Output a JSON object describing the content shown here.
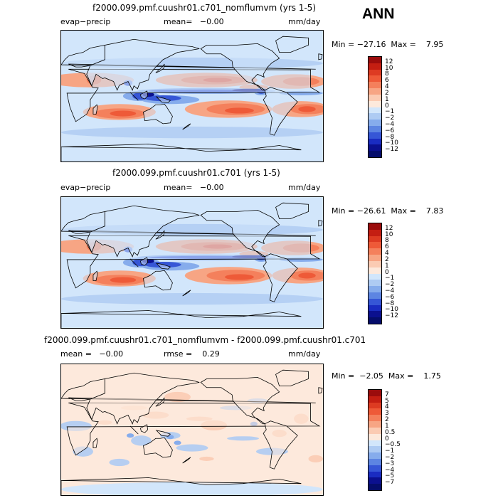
{
  "season": "ANN",
  "chart_data": [
    {
      "type": "heatmap",
      "title": "f2000.099.pmf.cuushr01.c701_nomflumvm (yrs 1-5)",
      "variable": "evap−precip",
      "mean_text": "mean=   −0.00",
      "units": "mm/day",
      "min_max_text": "Min = −27.16  Max =    7.95",
      "min": -27.16,
      "max": 7.95,
      "colorbar": {
        "levels": [
          "12",
          "10",
          "8",
          "6",
          "4",
          "2",
          "1",
          "0",
          "−1",
          "−2",
          "−4",
          "−6",
          "−8",
          "−10",
          "−12"
        ],
        "colors": [
          "#9b0c0c",
          "#c41e12",
          "#dd3b22",
          "#ee5a38",
          "#f4805c",
          "#f7a584",
          "#fbcbb3",
          "#fde9dc",
          "#d2e6fb",
          "#aecbf3",
          "#86acec",
          "#5d85e2",
          "#3656d6",
          "#1a2cc1",
          "#0b108f",
          "#050d6b"
        ]
      }
    },
    {
      "type": "heatmap",
      "title": "f2000.099.pmf.cuushr01.c701 (yrs 1-5)",
      "variable": "evap−precip",
      "mean_text": "mean=   −0.00",
      "units": "mm/day",
      "min_max_text": "Min = −26.61  Max =    7.83",
      "min": -26.61,
      "max": 7.83,
      "colorbar": {
        "levels": [
          "12",
          "10",
          "8",
          "6",
          "4",
          "2",
          "1",
          "0",
          "−1",
          "−2",
          "−4",
          "−6",
          "−8",
          "−10",
          "−12"
        ],
        "colors": [
          "#9b0c0c",
          "#c41e12",
          "#dd3b22",
          "#ee5a38",
          "#f4805c",
          "#f7a584",
          "#fbcbb3",
          "#fde9dc",
          "#d2e6fb",
          "#aecbf3",
          "#86acec",
          "#5d85e2",
          "#3656d6",
          "#1a2cc1",
          "#0b108f",
          "#050d6b"
        ]
      }
    },
    {
      "type": "heatmap",
      "title": "f2000.099.pmf.cuushr01.c701_nomflumvm - f2000.099.pmf.cuushr01.c701",
      "mean_text": "mean =   −0.00",
      "rmse_text": "rmse =    0.29",
      "units": "mm/day",
      "min_max_text": "Min =  −2.05  Max =    1.75",
      "min": -2.05,
      "max": 1.75,
      "colorbar": {
        "levels": [
          "7",
          "5",
          "4",
          "3",
          "2",
          "1",
          "0.5",
          "0",
          "−0.5",
          "−1",
          "−2",
          "−3",
          "−4",
          "−5",
          "−7"
        ],
        "colors": [
          "#9b0c0c",
          "#c41e12",
          "#dd3b22",
          "#ee5a38",
          "#f4805c",
          "#f7a584",
          "#fbcbb3",
          "#fde9dc",
          "#d2e6fb",
          "#aecbf3",
          "#86acec",
          "#5d85e2",
          "#3656d6",
          "#1a2cc1",
          "#0b108f",
          "#050d6b"
        ]
      }
    }
  ]
}
